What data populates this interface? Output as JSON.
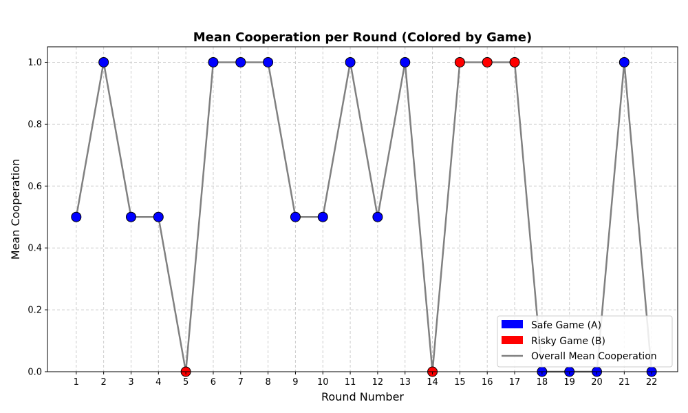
{
  "chart_data": {
    "type": "line",
    "title": "Mean Cooperation per Round (Colored by Game)",
    "xlabel": "Round Number",
    "ylabel": "Mean Cooperation",
    "x": [
      1,
      2,
      3,
      4,
      5,
      6,
      7,
      8,
      9,
      10,
      11,
      12,
      13,
      14,
      15,
      16,
      17,
      18,
      19,
      20,
      21,
      22
    ],
    "y": [
      0.5,
      1.0,
      0.5,
      0.5,
      0.0,
      1.0,
      1.0,
      1.0,
      0.5,
      0.5,
      1.0,
      0.5,
      1.0,
      0.0,
      1.0,
      1.0,
      1.0,
      0.0,
      0.0,
      0.0,
      1.0,
      0.0
    ],
    "game": [
      "A",
      "A",
      "A",
      "A",
      "B",
      "A",
      "A",
      "A",
      "A",
      "A",
      "A",
      "A",
      "A",
      "B",
      "B",
      "B",
      "B",
      "A",
      "A",
      "A",
      "A",
      "A"
    ],
    "ylim": [
      0.0,
      1.05
    ],
    "xlim": [
      -0.05,
      22.95
    ],
    "yticks": [
      "0.0",
      "0.2",
      "0.4",
      "0.6",
      "0.8",
      "1.0"
    ],
    "xticks": [
      "1",
      "2",
      "3",
      "4",
      "5",
      "6",
      "7",
      "8",
      "9",
      "10",
      "11",
      "12",
      "13",
      "14",
      "15",
      "16",
      "17",
      "18",
      "19",
      "20",
      "21",
      "22"
    ],
    "grid": true,
    "legend_position": "bottom-right",
    "legend": [
      {
        "label": "Safe Game (A)",
        "kind": "patch",
        "color": "#0000ff"
      },
      {
        "label": "Risky Game (B)",
        "kind": "patch",
        "color": "#ff0000"
      },
      {
        "label": "Overall Mean Cooperation",
        "kind": "line",
        "color": "#808080"
      }
    ],
    "colors": {
      "A": "#0000ff",
      "B": "#ff0000",
      "line": "#808080",
      "grid": "#cccccc"
    }
  }
}
